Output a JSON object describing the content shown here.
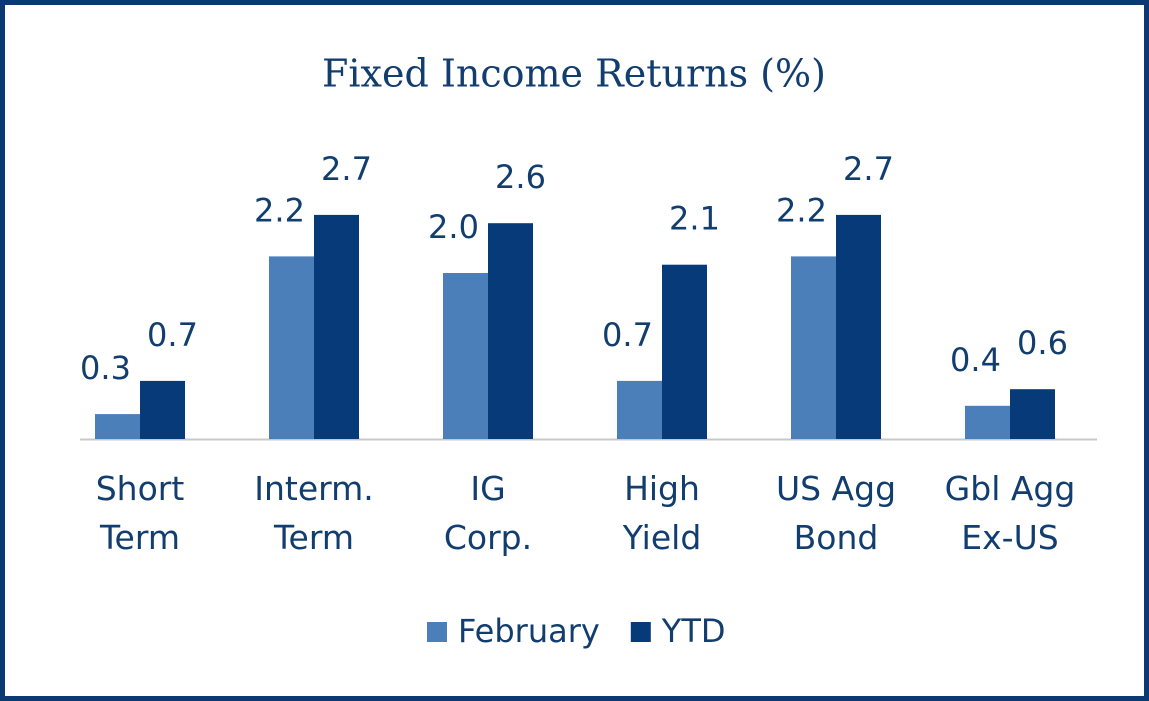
{
  "chart_data": {
    "type": "bar",
    "title": "Fixed Income Returns (%)",
    "categories": [
      "Short Term",
      "Interm. Term",
      "IG Corp.",
      "High Yield",
      "US Agg Bond",
      "Gbl Agg Ex-US"
    ],
    "series": [
      {
        "name": "February",
        "color": "#4a7fb9",
        "values": [
          0.3,
          2.2,
          2.0,
          0.7,
          2.2,
          0.4
        ],
        "value_labels": [
          "0.3",
          "2.2",
          "2.0",
          "0.7",
          "2.2",
          "0.4"
        ]
      },
      {
        "name": "YTD",
        "color": "#063a79",
        "values": [
          0.7,
          2.7,
          2.6,
          2.1,
          2.7,
          0.6
        ],
        "value_labels": [
          "0.7",
          "2.7",
          "2.6",
          "2.1",
          "2.7",
          "0.6"
        ]
      }
    ],
    "legend": "bottom"
  }
}
